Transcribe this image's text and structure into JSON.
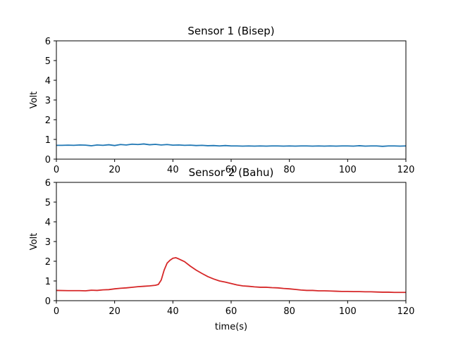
{
  "chart_data": [
    {
      "type": "line",
      "title": "Sensor 1 (Bisep)",
      "xlabel": "",
      "ylabel": "Volt",
      "xlim": [
        0,
        120
      ],
      "ylim": [
        0,
        6
      ],
      "xticks": [
        0,
        20,
        40,
        60,
        80,
        100,
        120
      ],
      "yticks": [
        0,
        1,
        2,
        3,
        4,
        5,
        6
      ],
      "grid": false,
      "series": [
        {
          "color": "#1f77b4",
          "x": [
            0,
            2,
            4,
            6,
            8,
            10,
            12,
            14,
            16,
            18,
            20,
            22,
            24,
            26,
            28,
            30,
            32,
            34,
            36,
            38,
            40,
            42,
            44,
            46,
            48,
            50,
            52,
            54,
            56,
            58,
            60,
            62,
            64,
            66,
            68,
            70,
            72,
            74,
            76,
            78,
            80,
            82,
            84,
            86,
            88,
            90,
            92,
            94,
            96,
            98,
            100,
            102,
            104,
            106,
            108,
            110,
            112,
            114,
            116,
            118,
            120
          ],
          "y": [
            0.7,
            0.7,
            0.71,
            0.7,
            0.72,
            0.71,
            0.68,
            0.72,
            0.7,
            0.73,
            0.69,
            0.74,
            0.72,
            0.76,
            0.74,
            0.77,
            0.73,
            0.75,
            0.72,
            0.74,
            0.71,
            0.72,
            0.7,
            0.71,
            0.69,
            0.7,
            0.68,
            0.69,
            0.67,
            0.69,
            0.67,
            0.67,
            0.66,
            0.67,
            0.66,
            0.67,
            0.66,
            0.67,
            0.67,
            0.66,
            0.67,
            0.66,
            0.67,
            0.67,
            0.66,
            0.67,
            0.66,
            0.67,
            0.66,
            0.67,
            0.67,
            0.66,
            0.68,
            0.66,
            0.67,
            0.67,
            0.65,
            0.67,
            0.67,
            0.66,
            0.67
          ]
        }
      ]
    },
    {
      "type": "line",
      "title": "Sensor 2 (Bahu)",
      "xlabel": "time(s)",
      "ylabel": "Volt",
      "xlim": [
        0,
        120
      ],
      "ylim": [
        0,
        6
      ],
      "xticks": [
        0,
        20,
        40,
        60,
        80,
        100,
        120
      ],
      "yticks": [
        0,
        1,
        2,
        3,
        4,
        5,
        6
      ],
      "grid": false,
      "series": [
        {
          "color": "#d62728",
          "x": [
            0,
            4,
            8,
            10,
            12,
            14,
            16,
            18,
            20,
            22,
            24,
            26,
            28,
            30,
            32,
            34,
            35,
            36,
            37,
            38,
            39,
            40,
            41,
            42,
            44,
            46,
            48,
            50,
            52,
            54,
            56,
            58,
            60,
            62,
            64,
            66,
            68,
            70,
            72,
            74,
            76,
            78,
            80,
            82,
            84,
            86,
            88,
            90,
            92,
            94,
            96,
            98,
            100,
            102,
            104,
            106,
            108,
            110,
            112,
            114,
            116,
            118,
            120
          ],
          "y": [
            0.52,
            0.51,
            0.51,
            0.5,
            0.53,
            0.52,
            0.55,
            0.56,
            0.6,
            0.63,
            0.65,
            0.68,
            0.71,
            0.73,
            0.75,
            0.78,
            0.82,
            1.05,
            1.55,
            1.9,
            2.05,
            2.15,
            2.18,
            2.12,
            1.98,
            1.75,
            1.55,
            1.38,
            1.22,
            1.1,
            1.0,
            0.94,
            0.87,
            0.8,
            0.75,
            0.73,
            0.7,
            0.68,
            0.68,
            0.66,
            0.65,
            0.62,
            0.6,
            0.57,
            0.54,
            0.52,
            0.52,
            0.5,
            0.5,
            0.49,
            0.48,
            0.47,
            0.47,
            0.46,
            0.46,
            0.45,
            0.45,
            0.44,
            0.43,
            0.43,
            0.42,
            0.42,
            0.42
          ]
        }
      ]
    }
  ]
}
